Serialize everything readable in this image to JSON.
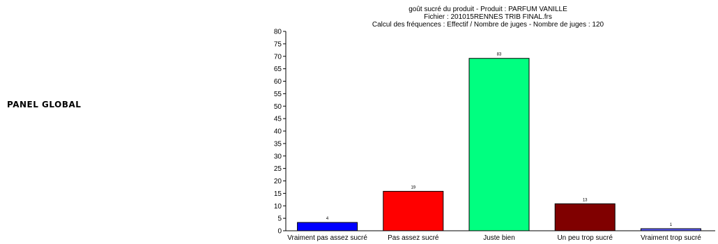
{
  "panel": {
    "label": "PANEL GLOBAL"
  },
  "chart_data": {
    "type": "bar",
    "title": [
      "goût sucré du produit - Produit : PARFUM VANILLE",
      "Fichier : 201015RENNES TRIB FINAL.frs",
      "Calcul des fréquences : Effectif / Nombre de juges - Nombre de juges : 120"
    ],
    "categories": [
      "Vraiment pas assez sucré",
      "Pas assez sucré",
      "Juste bien",
      "Un peu trop sucré",
      "Vraiment trop sucré"
    ],
    "values": [
      3.33,
      15.83,
      69.17,
      10.83,
      0.83
    ],
    "data_labels": [
      "4",
      "19",
      "83",
      "13",
      "1"
    ],
    "bar_colors": [
      "#0000ff",
      "#ff0000",
      "#00ff80",
      "#800000",
      "#6060ff"
    ],
    "ylim": [
      0,
      80
    ],
    "yticks": [
      0,
      5,
      10,
      15,
      20,
      25,
      30,
      35,
      40,
      45,
      50,
      55,
      60,
      65,
      70,
      75,
      80
    ],
    "grid": false,
    "legend": "none"
  }
}
